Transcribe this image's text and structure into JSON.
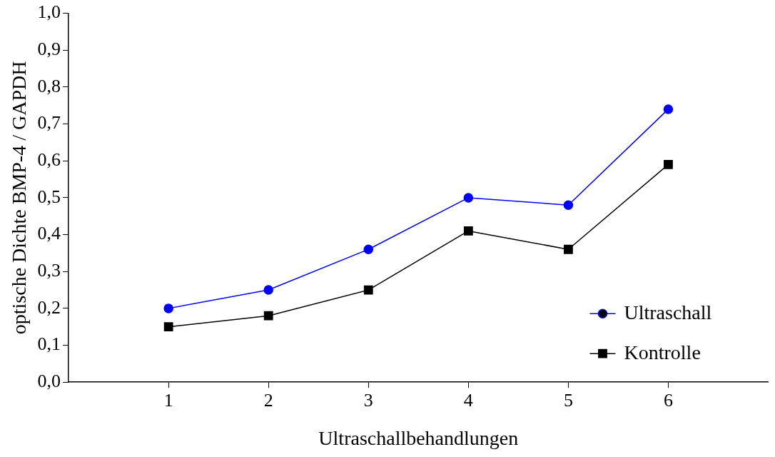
{
  "chart_data": {
    "type": "line",
    "xlabel": "Ultraschallbehandlungen",
    "ylabel": "optische Dichte BMP-4 / GAPDH",
    "x": [
      1,
      2,
      3,
      4,
      5,
      6
    ],
    "xlim": [
      0,
      7
    ],
    "xticks": [
      1,
      2,
      3,
      4,
      5,
      6
    ],
    "ylim": [
      0,
      1
    ],
    "yticks": [
      {
        "value": 0,
        "label": "0,0"
      },
      {
        "value": 0.1,
        "label": "0,1"
      },
      {
        "value": 0.2,
        "label": "0,2"
      },
      {
        "value": 0.3,
        "label": "0,3"
      },
      {
        "value": 0.4,
        "label": "0,4"
      },
      {
        "value": 0.5,
        "label": "0,5"
      },
      {
        "value": 0.6,
        "label": "0,6"
      },
      {
        "value": 0.7,
        "label": "0,7"
      },
      {
        "value": 0.8,
        "label": "0,8"
      },
      {
        "value": 0.9,
        "label": "0,9"
      },
      {
        "value": 1,
        "label": "1,0"
      }
    ],
    "grid": false,
    "legend": "bottom right",
    "line_style": "solid",
    "series": [
      {
        "name": "Ultraschall",
        "color": "#0000ff",
        "marker": "circle",
        "values": [
          0.2,
          0.25,
          0.36,
          0.5,
          0.48,
          0.74
        ]
      },
      {
        "name": "Kontrolle",
        "color": "#000000",
        "marker": "square",
        "values": [
          0.15,
          0.18,
          0.25,
          0.41,
          0.36,
          0.59
        ]
      }
    ]
  }
}
